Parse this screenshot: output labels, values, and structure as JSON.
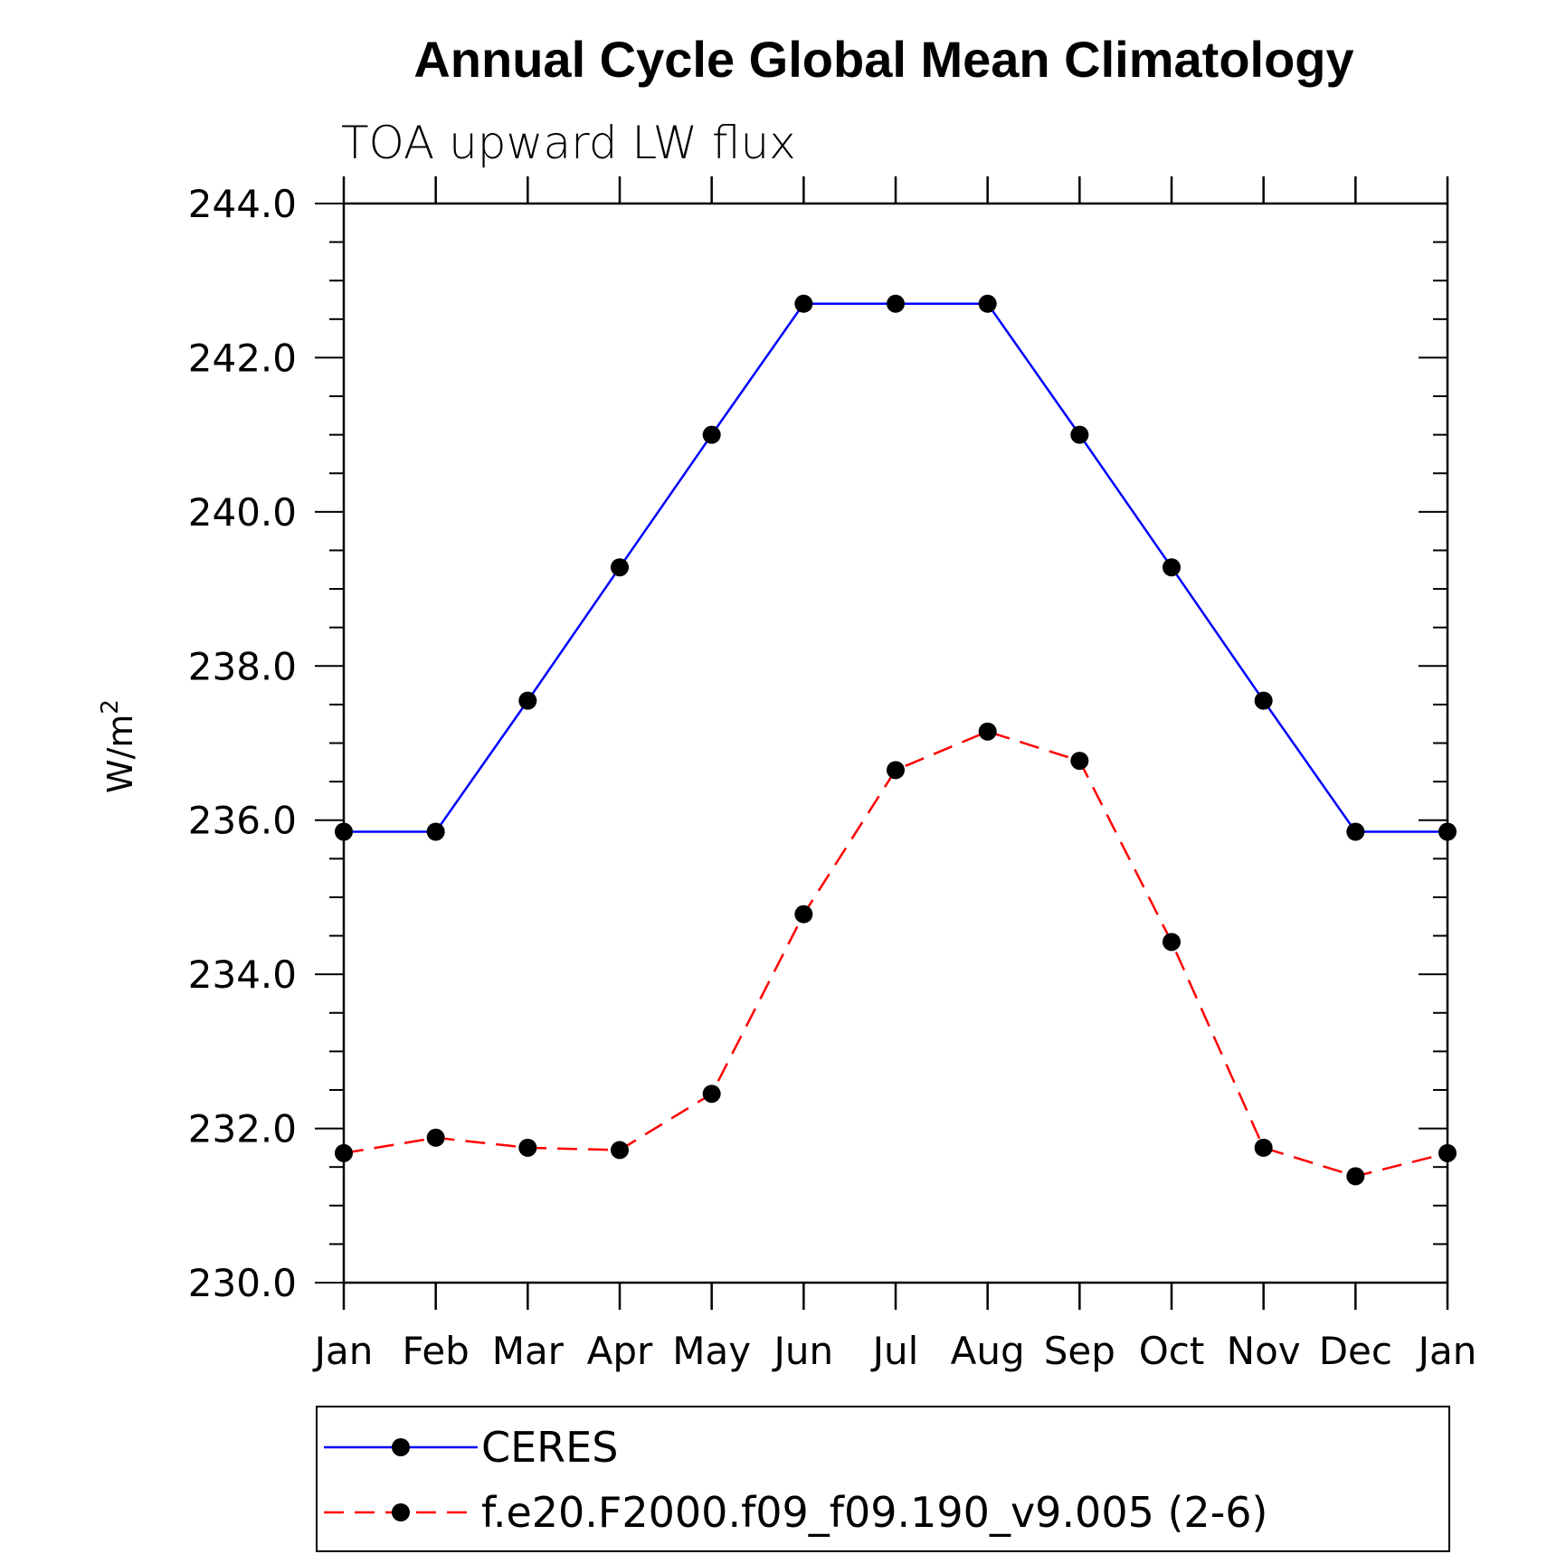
{
  "chart_data": {
    "type": "line",
    "title": "Annual Cycle Global Mean Climatology",
    "subtitle": "TOA upward LW flux",
    "ylabel_base": "W/m",
    "ylabel_sup": "2",
    "categories": [
      "Jan",
      "Feb",
      "Mar",
      "Apr",
      "May",
      "Jun",
      "Jul",
      "Aug",
      "Sep",
      "Oct",
      "Nov",
      "Dec",
      "Jan"
    ],
    "ylim": [
      230,
      244
    ],
    "yticks": [
      "230.0",
      "232.0",
      "234.0",
      "236.0",
      "238.0",
      "240.0",
      "242.0",
      "244.0"
    ],
    "series": [
      {
        "name": "CERES",
        "color": "#0000ff",
        "dash": "solid",
        "values": [
          235.85,
          235.85,
          237.55,
          239.28,
          241.0,
          242.7,
          242.7,
          242.7,
          241.0,
          239.28,
          237.55,
          235.85,
          235.85
        ]
      },
      {
        "name": "f.e20.F2000.f09_f09.190_v9.005 (2-6)",
        "color": "#ff0000",
        "dash": "dashed",
        "values": [
          231.68,
          231.88,
          231.75,
          231.72,
          232.45,
          234.78,
          236.65,
          237.15,
          236.77,
          234.42,
          231.75,
          231.38,
          231.68
        ]
      }
    ],
    "legend_placement": "bottom",
    "grid": false
  }
}
